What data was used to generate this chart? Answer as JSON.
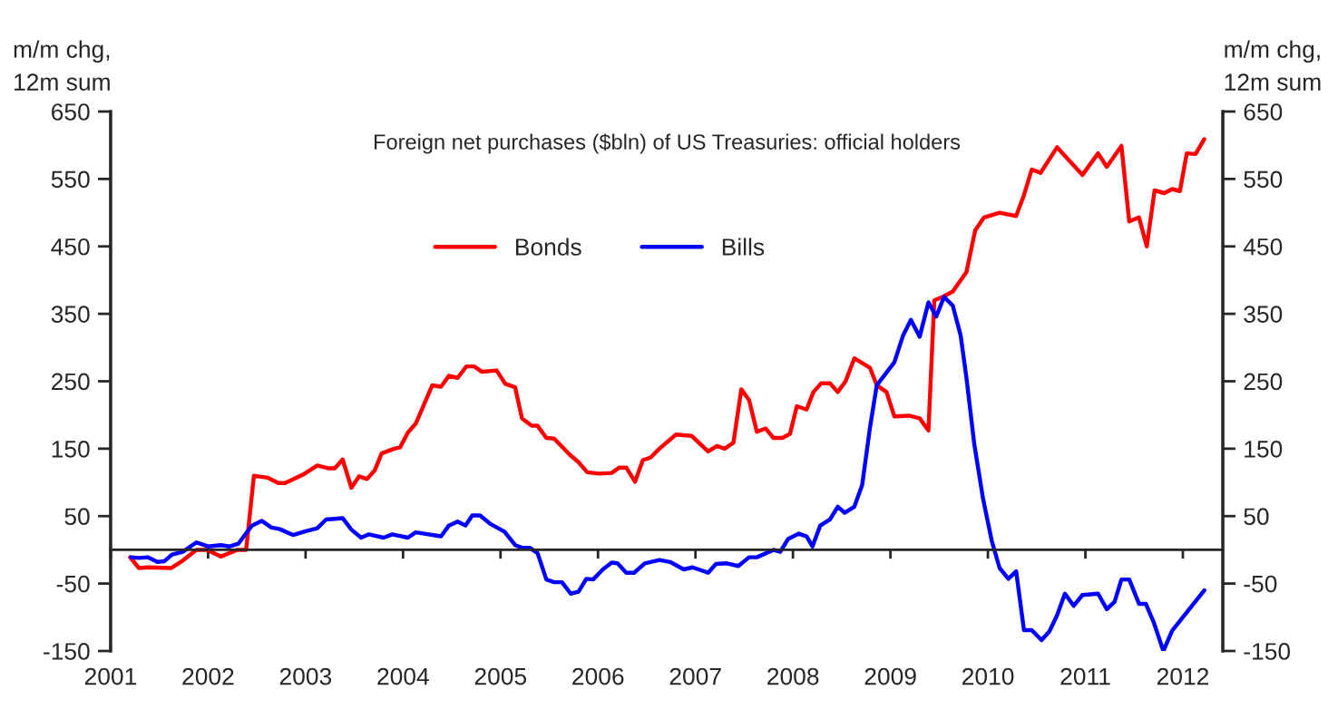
{
  "chart_data": {
    "type": "line",
    "title": "Foreign net purchases ($bln) of US Treasuries: official holders",
    "ylabel": "m/m chg,\n12m sum",
    "y2label": "m/m chg,\n12m sum",
    "xlim": [
      2001,
      2012.41
    ],
    "xticks": [
      2001,
      2002,
      2003,
      2004,
      2005,
      2006,
      2007,
      2008,
      2009,
      2010,
      2011,
      2012
    ],
    "ylim": [
      -150,
      650
    ],
    "yticks": [
      -150,
      -50,
      50,
      150,
      250,
      350,
      450,
      550,
      650
    ],
    "y2lim": [
      -150,
      650
    ],
    "y2ticks": [
      -150,
      -50,
      50,
      150,
      250,
      350,
      450,
      550,
      650
    ],
    "legend": "top",
    "grid": false,
    "line_style": "solid",
    "marker": "none",
    "series": [
      {
        "name": "Bonds",
        "color": "#ff0000",
        "x": [
          2001.2,
          2001.29,
          2001.38,
          2001.62,
          2001.74,
          2001.88,
          2001.99,
          2002.13,
          2002.3,
          2002.39,
          2002.47,
          2002.61,
          2002.72,
          2002.79,
          2002.98,
          2003.12,
          2003.23,
          2003.3,
          2003.38,
          2003.47,
          2003.55,
          2003.63,
          2003.71,
          2003.78,
          2003.91,
          2003.97,
          2004.05,
          2004.13,
          2004.3,
          2004.39,
          2004.47,
          2004.56,
          2004.65,
          2004.73,
          2004.81,
          2004.96,
          2005.05,
          2005.15,
          2005.22,
          2005.32,
          2005.38,
          2005.47,
          2005.55,
          2005.71,
          2005.8,
          2005.89,
          2006.01,
          2006.14,
          2006.22,
          2006.29,
          2006.38,
          2006.46,
          2006.54,
          2006.63,
          2006.8,
          2006.96,
          2007.13,
          2007.22,
          2007.3,
          2007.39,
          2007.47,
          2007.55,
          2007.63,
          2007.72,
          2007.8,
          2007.89,
          2007.97,
          2008.04,
          2008.14,
          2008.21,
          2008.29,
          2008.38,
          2008.46,
          2008.54,
          2008.63,
          2008.79,
          2008.86,
          2008.96,
          2009.04,
          2009.19,
          2009.3,
          2009.39,
          2009.45,
          2009.55,
          2009.64,
          2009.78,
          2009.87,
          2009.96,
          2010.12,
          2010.29,
          2010.37,
          2010.45,
          2010.54,
          2010.71,
          2010.97,
          2011.13,
          2011.22,
          2011.37,
          2011.45,
          2011.55,
          2011.63,
          2011.71,
          2011.81,
          2011.89,
          2011.97,
          2012.04,
          2012.13,
          2012.22
        ],
        "values": [
          -11,
          -27,
          -26,
          -27,
          -16,
          0,
          0,
          -10,
          0,
          0,
          110,
          107,
          99,
          99,
          112,
          125,
          121,
          121,
          134,
          92,
          109,
          105,
          118,
          143,
          150,
          152,
          174,
          187,
          244,
          242,
          258,
          255,
          272,
          272,
          264,
          266,
          246,
          241,
          195,
          184,
          184,
          166,
          165,
          141,
          130,
          115,
          113,
          114,
          122,
          122,
          101,
          133,
          137,
          150,
          171,
          169,
          146,
          154,
          150,
          159,
          238,
          222,
          175,
          180,
          166,
          166,
          172,
          213,
          208,
          234,
          247,
          247,
          234,
          250,
          284,
          270,
          244,
          234,
          198,
          199,
          195,
          177,
          370,
          376,
          383,
          412,
          474,
          493,
          500,
          495,
          526,
          564,
          559,
          597,
          556,
          588,
          568,
          599,
          487,
          493,
          450,
          533,
          529,
          535,
          532,
          588,
          587,
          609
        ]
      },
      {
        "name": "Bills",
        "color": "#0000ff",
        "x": [
          2001.21,
          2001.29,
          2001.38,
          2001.48,
          2001.55,
          2001.63,
          2001.74,
          2001.88,
          2002.0,
          2002.13,
          2002.22,
          2002.31,
          2002.45,
          2002.55,
          2002.65,
          2002.73,
          2002.87,
          2003.01,
          2003.12,
          2003.21,
          2003.38,
          2003.47,
          2003.57,
          2003.65,
          2003.8,
          2003.89,
          2004.05,
          2004.13,
          2004.39,
          2004.47,
          2004.56,
          2004.64,
          2004.71,
          2004.79,
          2004.9,
          2005.04,
          2005.15,
          2005.22,
          2005.3,
          2005.38,
          2005.47,
          2005.55,
          2005.63,
          2005.72,
          2005.8,
          2005.88,
          2005.95,
          2006.05,
          2006.14,
          2006.2,
          2006.29,
          2006.37,
          2006.48,
          2006.63,
          2006.74,
          2006.88,
          2006.97,
          2007.13,
          2007.21,
          2007.32,
          2007.44,
          2007.55,
          2007.63,
          2007.8,
          2007.87,
          2007.95,
          2008.06,
          2008.14,
          2008.2,
          2008.28,
          2008.38,
          2008.46,
          2008.53,
          2008.63,
          2008.71,
          2008.79,
          2008.86,
          2009.04,
          2009.13,
          2009.21,
          2009.3,
          2009.39,
          2009.47,
          2009.55,
          2009.64,
          2009.72,
          2009.78,
          2009.86,
          2009.95,
          2010.04,
          2010.12,
          2010.21,
          2010.29,
          2010.37,
          2010.45,
          2010.55,
          2010.63,
          2010.71,
          2010.79,
          2010.88,
          2010.97,
          2011.13,
          2011.22,
          2011.3,
          2011.37,
          2011.45,
          2011.55,
          2011.62,
          2011.7,
          2011.8,
          2011.89,
          2012.06,
          2012.22
        ],
        "values": [
          -11,
          -12,
          -11,
          -18,
          -17,
          -7,
          -3,
          11,
          5,
          7,
          5,
          9,
          36,
          43,
          33,
          31,
          22,
          28,
          32,
          45,
          47,
          30,
          18,
          23,
          18,
          23,
          18,
          26,
          20,
          36,
          42,
          36,
          51,
          51,
          38,
          27,
          7,
          3,
          3,
          -5,
          -44,
          -48,
          -48,
          -65,
          -62,
          -43,
          -44,
          -29,
          -19,
          -20,
          -34,
          -34,
          -20,
          -15,
          -18,
          -29,
          -26,
          -34,
          -21,
          -20,
          -24,
          -11,
          -11,
          0,
          -3,
          16,
          24,
          20,
          5,
          36,
          45,
          64,
          55,
          64,
          96,
          181,
          244,
          278,
          318,
          341,
          316,
          367,
          346,
          375,
          362,
          318,
          255,
          157,
          76,
          13,
          -27,
          -43,
          -32,
          -119,
          -119,
          -134,
          -121,
          -97,
          -65,
          -83,
          -67,
          -65,
          -88,
          -77,
          -44,
          -44,
          -80,
          -80,
          -107,
          -150,
          -120,
          -89,
          -60
        ]
      }
    ]
  }
}
